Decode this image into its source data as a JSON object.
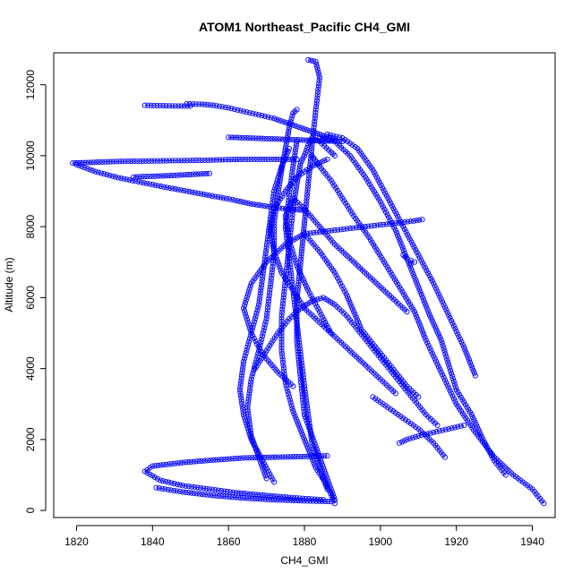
{
  "chart_data": {
    "type": "scatter",
    "title": "ATOM1 Northeast_Pacific CH4_GMI",
    "xlabel": "CH4_GMI",
    "ylabel": "Altitude (m)",
    "xlim": [
      1814,
      1946
    ],
    "ylim": [
      -200,
      12900
    ],
    "x_ticks": [
      1820,
      1840,
      1860,
      1880,
      1900,
      1920,
      1940
    ],
    "y_ticks": [
      0,
      2000,
      4000,
      6000,
      8000,
      10000,
      12000
    ],
    "marker": "open-circle",
    "color": "#0000ff",
    "grid": false,
    "series": [
      {
        "x": [
          1888,
          1886,
          1883,
          1880,
          1877,
          1875,
          1874,
          1874,
          1875,
          1876,
          1877,
          1878,
          1879,
          1880,
          1881,
          1882,
          1884,
          1887,
          1888
        ],
        "y": [
          200,
          700,
          1200,
          2000,
          2800,
          3600,
          4500,
          5500,
          6500,
          7500,
          8500,
          9200,
          9800,
          10000,
          10300,
          10500,
          10400,
          10100,
          10000
        ]
      },
      {
        "x": [
          1943,
          1940,
          1935,
          1930,
          1925,
          1920,
          1916,
          1912,
          1909,
          1905,
          1901,
          1897,
          1893,
          1890,
          1887,
          1884,
          1882
        ],
        "y": [
          200,
          600,
          1000,
          1500,
          2200,
          3000,
          3900,
          4800,
          5600,
          6300,
          7000,
          7700,
          8300,
          8800,
          9300,
          9700,
          10000
        ]
      },
      {
        "x": [
          1933,
          1930,
          1927,
          1924,
          1920,
          1918,
          1916,
          1913,
          1910,
          1907,
          1904,
          1900,
          1896,
          1892,
          1888,
          1884
        ],
        "y": [
          1000,
          1400,
          2000,
          2700,
          3400,
          4100,
          4800,
          5500,
          6300,
          7100,
          7900,
          8700,
          9400,
          10000,
          10400,
          10500
        ]
      },
      {
        "x": [
          1925,
          1922,
          1918,
          1914,
          1910,
          1906,
          1902,
          1898,
          1894,
          1890,
          1886
        ],
        "y": [
          3800,
          4600,
          5500,
          6400,
          7200,
          8000,
          8800,
          9600,
          10200,
          10500,
          10600
        ]
      },
      {
        "x": [
          1888,
          1886,
          1883,
          1880,
          1879,
          1878,
          1878,
          1879,
          1880,
          1881,
          1882,
          1883,
          1884,
          1883,
          1881
        ],
        "y": [
          300,
          900,
          1800,
          2700,
          3700,
          4800,
          5900,
          7000,
          8100,
          9200,
          10300,
          11300,
          12200,
          12650,
          12700
        ]
      },
      {
        "x": [
          1870,
          1868,
          1866,
          1865,
          1866,
          1868,
          1870,
          1871,
          1872,
          1872,
          1873,
          1874,
          1875,
          1876,
          1877,
          1878
        ],
        "y": [
          900,
          1500,
          2100,
          2900,
          3700,
          4500,
          5400,
          6300,
          7200,
          8100,
          8900,
          9600,
          10200,
          10800,
          11200,
          11300
        ]
      },
      {
        "x": [
          1872,
          1869,
          1866,
          1864,
          1863,
          1864,
          1866,
          1868,
          1869,
          1870,
          1871,
          1872,
          1874,
          1876
        ],
        "y": [
          800,
          1400,
          2000,
          2700,
          3400,
          4200,
          5000,
          5800,
          6600,
          7400,
          8200,
          9000,
          9700,
          10200
        ]
      },
      {
        "x": [
          1886,
          1884,
          1882,
          1881,
          1880,
          1879,
          1878,
          1877,
          1876,
          1875,
          1876,
          1877,
          1878
        ],
        "y": [
          600,
          1200,
          1900,
          2700,
          3500,
          4400,
          5300,
          6200,
          7100,
          8000,
          8900,
          9700,
          10400
        ]
      },
      {
        "x": [
          1877,
          1873,
          1869,
          1866,
          1864,
          1866,
          1870,
          1875,
          1880,
          1884,
          1888,
          1891,
          1893,
          1895,
          1898,
          1901,
          1904,
          1907,
          1910
        ],
        "y": [
          3500,
          3900,
          4400,
          5000,
          5700,
          6400,
          7000,
          7500,
          7800,
          7300,
          6700,
          6100,
          5600,
          5100,
          4700,
          4300,
          3900,
          3500,
          3200
        ]
      },
      {
        "x": [
          1887,
          1884,
          1881,
          1878,
          1876,
          1875,
          1877,
          1880,
          1884,
          1888,
          1893,
          1898,
          1903,
          1907
        ],
        "y": [
          5000,
          5600,
          6200,
          6900,
          7600,
          8300,
          8800,
          8500,
          8000,
          7500,
          7000,
          6500,
          6000,
          5600
        ]
      },
      {
        "x": [
          1867,
          1870,
          1873,
          1876,
          1879,
          1882,
          1885,
          1888,
          1891,
          1894,
          1897,
          1900,
          1903,
          1906,
          1909,
          1912,
          1915
        ],
        "y": [
          4000,
          4500,
          5000,
          5400,
          5700,
          5900,
          6000,
          5800,
          5500,
          5100,
          4700,
          4300,
          3900,
          3500,
          3100,
          2700,
          2400
        ]
      },
      {
        "x": [
          1904,
          1900,
          1896,
          1892,
          1888,
          1884,
          1880,
          1877,
          1874,
          1872,
          1871,
          1872,
          1875,
          1878,
          1882,
          1886
        ],
        "y": [
          3300,
          3700,
          4100,
          4500,
          4900,
          5300,
          5700,
          6200,
          6700,
          7300,
          7900,
          8500,
          9000,
          9400,
          9700,
          9900
        ]
      },
      {
        "x": [
          1878,
          1872,
          1866,
          1860,
          1853,
          1846,
          1839,
          1832,
          1826,
          1821,
          1819
        ],
        "y": [
          9900,
          9900,
          9900,
          9890,
          9870,
          9860,
          9850,
          9840,
          9820,
          9800,
          9790
        ]
      },
      {
        "x": [
          1820,
          1825,
          1831,
          1837,
          1843,
          1849,
          1855,
          1861,
          1866,
          1871,
          1875,
          1878,
          1880
        ],
        "y": [
          9750,
          9550,
          9380,
          9250,
          9120,
          9000,
          8880,
          8760,
          8640,
          8560,
          8500,
          8480,
          8460
        ]
      },
      {
        "x": [
          1835,
          1840,
          1845,
          1850,
          1855
        ],
        "y": [
          9400,
          9420,
          9440,
          9470,
          9500
        ]
      },
      {
        "x": [
          1838,
          1842,
          1846,
          1850
        ],
        "y": [
          11420,
          11410,
          11400,
          11400
        ]
      },
      {
        "x": [
          1849,
          1853,
          1856,
          1860,
          1864,
          1868,
          1872,
          1876,
          1880,
          1884,
          1888
        ],
        "y": [
          11460,
          11450,
          11420,
          11350,
          11250,
          11150,
          11050,
          10900,
          10750,
          10600,
          10450
        ]
      },
      {
        "x": [
          1860,
          1865,
          1870,
          1875,
          1880,
          1885,
          1890
        ],
        "y": [
          10520,
          10500,
          10480,
          10460,
          10440,
          10420,
          10400
        ]
      },
      {
        "x": [
          1880,
          1884,
          1888,
          1892,
          1896,
          1900,
          1904,
          1908,
          1911
        ],
        "y": [
          7800,
          7850,
          7900,
          7950,
          8000,
          8050,
          8100,
          8150,
          8200
        ]
      },
      {
        "x": [
          1906,
          1907,
          1908,
          1909,
          1908
        ],
        "y": [
          7200,
          7100,
          7050,
          7000,
          6950
        ]
      },
      {
        "x": [
          1885,
          1878,
          1870,
          1862,
          1855,
          1848,
          1842,
          1838,
          1840,
          1848,
          1856,
          1864,
          1872,
          1880,
          1886
        ],
        "y": [
          300,
          350,
          420,
          500,
          600,
          700,
          850,
          1100,
          1250,
          1350,
          1420,
          1480,
          1500,
          1520,
          1540
        ]
      },
      {
        "x": [
          1887,
          1880,
          1872,
          1864,
          1856,
          1848,
          1841
        ],
        "y": [
          250,
          270,
          300,
          350,
          420,
          520,
          640
        ]
      },
      {
        "x": [
          1898,
          1902,
          1906,
          1910,
          1914,
          1917
        ],
        "y": [
          3200,
          2900,
          2600,
          2300,
          1900,
          1500
        ]
      },
      {
        "x": [
          1905,
          1907,
          1910,
          1914,
          1918,
          1922
        ],
        "y": [
          1900,
          2000,
          2100,
          2200,
          2300,
          2400
        ]
      }
    ]
  }
}
